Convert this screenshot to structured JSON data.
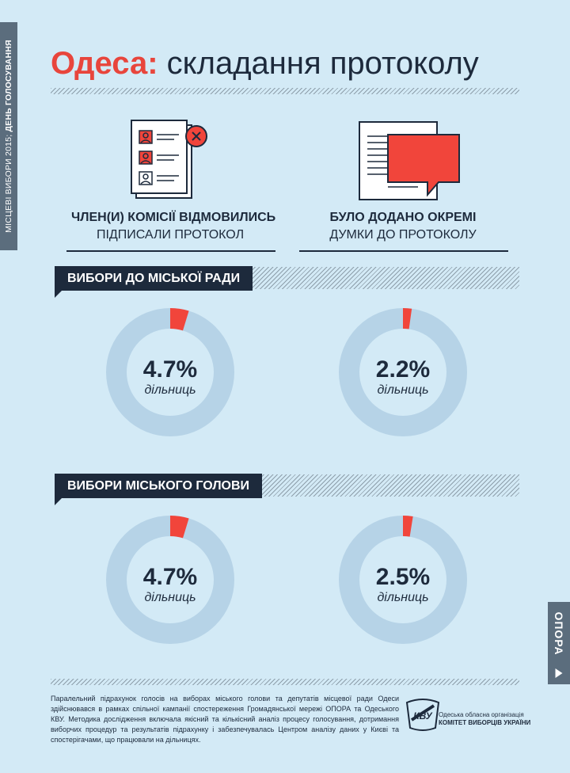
{
  "side_tab": {
    "text_regular": "МІСЦЕВІ ВИБОРИ 2015",
    "text_bold": "ДЕНЬ ГОЛОСУВАННЯ"
  },
  "title": {
    "accent": "Одеса:",
    "rest": "складання протоколу"
  },
  "features": [
    {
      "icon": "refused-signature-document-icon",
      "line1": "ЧЛЕН(И) КОМІСІЇ ВІДМОВИЛИСЬ",
      "line2": "ПІДПИСАЛИ ПРОТОКОЛ"
    },
    {
      "icon": "opinion-bubble-document-icon",
      "line1": "БУЛО ДОДАНО ОКРЕМІ",
      "line2": "ДУМКИ ДО ПРОТОКОЛУ"
    }
  ],
  "sections": [
    {
      "title": "ВИБОРИ ДО МІСЬКОЇ РАДИ"
    },
    {
      "title": "ВИБОРИ МІСЬКОГО ГОЛОВИ"
    }
  ],
  "chart_data": {
    "type": "pie",
    "style": "donut",
    "unit": "дільниць",
    "colors": {
      "highlight": "#f1453b",
      "ring": "#b6d3e7"
    },
    "charts": [
      {
        "section": "ВИБОРИ ДО МІСЬКОЇ РАДИ",
        "feature": "ЧЛЕН(И) КОМІСІЇ ВІДМОВИЛИСЬ ПІДПИСАЛИ ПРОТОКОЛ",
        "value": 4.7,
        "label": "4.7%"
      },
      {
        "section": "ВИБОРИ ДО МІСЬКОЇ РАДИ",
        "feature": "БУЛО ДОДАНО ОКРЕМІ ДУМКИ ДО ПРОТОКОЛУ",
        "value": 2.2,
        "label": "2.2%"
      },
      {
        "section": "ВИБОРИ МІСЬКОГО ГОЛОВИ",
        "feature": "ЧЛЕН(И) КОМІСІЇ ВІДМОВИЛИСЬ ПІДПИСАЛИ ПРОТОКОЛ",
        "value": 4.7,
        "label": "4.7%"
      },
      {
        "section": "ВИБОРИ МІСЬКОГО ГОЛОВИ",
        "feature": "БУЛО ДОДАНО ОКРЕМІ ДУМКИ ДО ПРОТОКОЛУ",
        "value": 2.5,
        "label": "2.5%"
      }
    ]
  },
  "footnote": "Паралельний підрахунок голосів на виборах міського голови та депутатів місцевої ради Одеси здійснювався в рамках спільної кампанії спостереження Громадянської мережі ОПОРА та Одеського КВУ. Методика дослідження включала якісний та кількісний аналіз процесу голосування, дотримання виборчих процедур та результатів підрахунку і забезпечувалась Центром аналізу даних у Києві та спостерігачами, що працювали на дільницях.",
  "kvu": {
    "logo_text": "КВУ",
    "line1": "Одеська обласна організація",
    "line2": "КОМІТЕТ ВИБОРЦІВ УКРАЇНИ"
  },
  "opora": {
    "label": "ОПОРА"
  }
}
